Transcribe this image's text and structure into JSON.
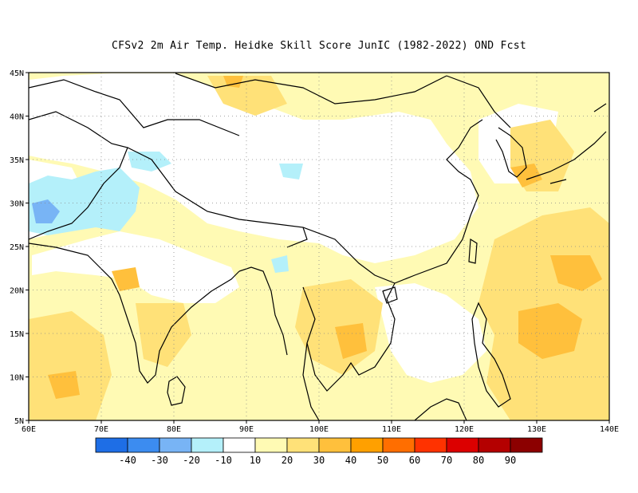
{
  "title": "CFSv2  2m Air Temp. Heidke Skill Score JunIC (1982-2022) OND Fcst",
  "map": {
    "lon_range": [
      60,
      140
    ],
    "lat_range": [
      5,
      45
    ],
    "lon_ticks": [
      "60E",
      "70E",
      "80E",
      "90E",
      "100E",
      "110E",
      "120E",
      "130E",
      "140E"
    ],
    "lat_ticks": [
      "45N",
      "40N",
      "35N",
      "30N",
      "25N",
      "20N",
      "15N",
      "10N",
      "5N"
    ]
  },
  "colorbar": {
    "colors": [
      "#1e6ee6",
      "#3c8cf0",
      "#78b4f5",
      "#b4f0fa",
      "#ffffff",
      "#fffab4",
      "#ffe178",
      "#ffc03c",
      "#ffa000",
      "#ff6e00",
      "#ff3200",
      "#dc0000",
      "#b40000",
      "#8c0000"
    ],
    "labels": [
      "-40",
      "-30",
      "-20",
      "-10",
      "10",
      "20",
      "30",
      "40",
      "50",
      "60",
      "70",
      "80",
      "90"
    ]
  }
}
